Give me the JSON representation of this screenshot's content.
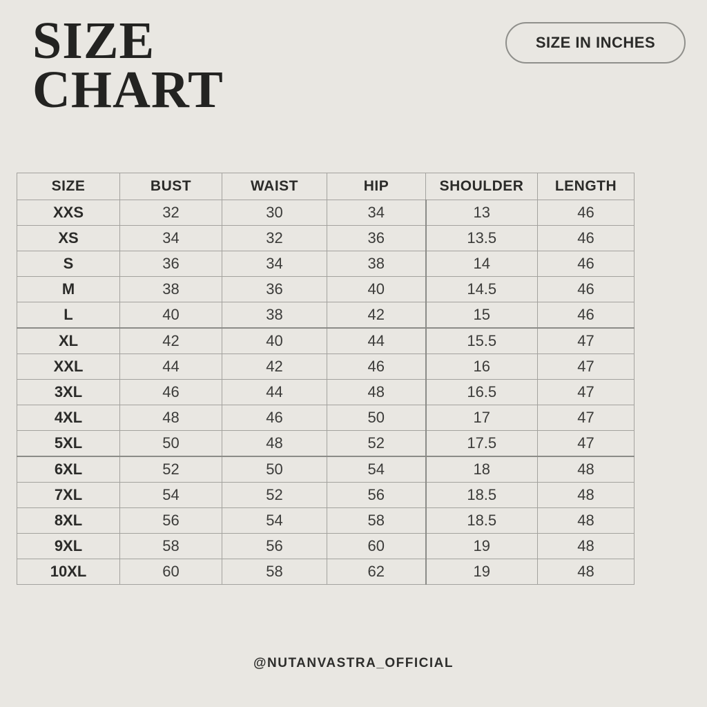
{
  "header": {
    "title_line1": "SIZE",
    "title_line2": "CHART",
    "badge_label": "SIZE IN INCHES"
  },
  "chart_data": {
    "type": "table",
    "title": "SIZE CHART",
    "unit_note": "SIZE IN INCHES",
    "columns": [
      "SIZE",
      "BUST",
      "WAIST",
      "HIP",
      "SHOULDER",
      "LENGTH"
    ],
    "rows": [
      [
        "XXS",
        "32",
        "30",
        "34",
        "13",
        "46"
      ],
      [
        "XS",
        "34",
        "32",
        "36",
        "13.5",
        "46"
      ],
      [
        "S",
        "36",
        "34",
        "38",
        "14",
        "46"
      ],
      [
        "M",
        "38",
        "36",
        "40",
        "14.5",
        "46"
      ],
      [
        "L",
        "40",
        "38",
        "42",
        "15",
        "46"
      ],
      [
        "XL",
        "42",
        "40",
        "44",
        "15.5",
        "47"
      ],
      [
        "XXL",
        "44",
        "42",
        "46",
        "16",
        "47"
      ],
      [
        "3XL",
        "46",
        "44",
        "48",
        "16.5",
        "47"
      ],
      [
        "4XL",
        "48",
        "46",
        "50",
        "17",
        "47"
      ],
      [
        "5XL",
        "50",
        "48",
        "52",
        "17.5",
        "47"
      ],
      [
        "6XL",
        "52",
        "50",
        "54",
        "18",
        "48"
      ],
      [
        "7XL",
        "54",
        "52",
        "56",
        "18.5",
        "48"
      ],
      [
        "8XL",
        "56",
        "54",
        "58",
        "18.5",
        "48"
      ],
      [
        "9XL",
        "58",
        "56",
        "60",
        "19",
        "48"
      ],
      [
        "10XL",
        "60",
        "58",
        "62",
        "19",
        "48"
      ]
    ],
    "group_breaks_before": [
      "XL",
      "6XL"
    ],
    "layout_hints": {
      "grid": true,
      "header_row": true,
      "bold_first_column": true
    }
  },
  "footer": {
    "handle": "@NUTANVASTRA_OFFICIAL"
  },
  "colors": {
    "background": "#e9e7e2",
    "grid_border": "#a3a29e",
    "grid_border_strong": "#8b8b87",
    "text_dark": "#2b2b29",
    "text_data": "#3b3b39",
    "badge_border": "#8f8f8b"
  }
}
